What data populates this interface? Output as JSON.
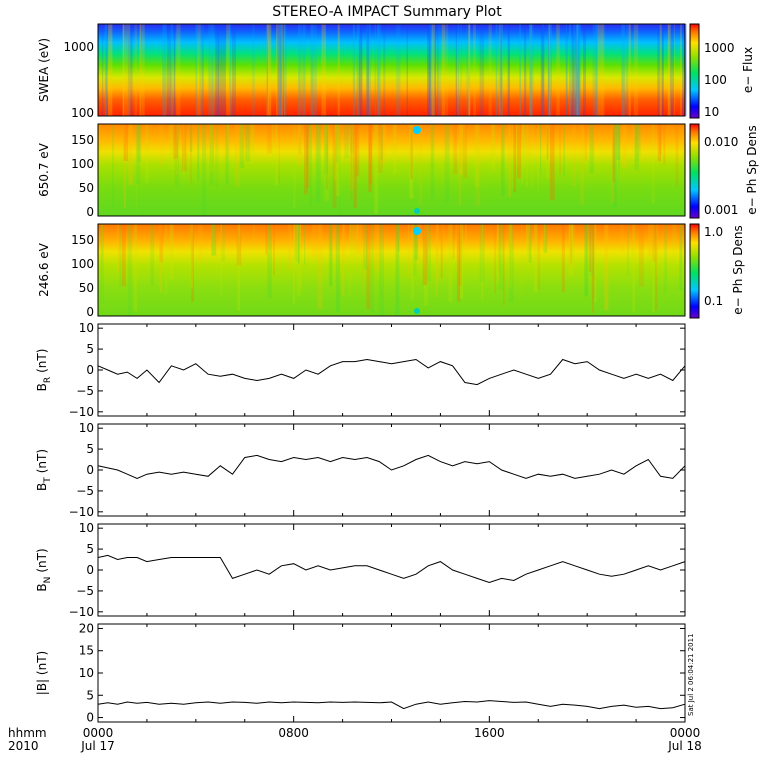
{
  "chart_data": {
    "title": "STEREO-A IMPACT Summary Plot",
    "x_labels": {
      "row1_caption": "hhmm",
      "row2_caption": "2010",
      "ticks": [
        "0000",
        "0800",
        "1600",
        "0000"
      ],
      "dates": [
        "Jul 17",
        "",
        "",
        "Jul 18"
      ]
    },
    "x_range_hours": [
      0,
      24
    ],
    "timestamp": "Sat Jul  2 06:04:21 2011",
    "panels": [
      {
        "id": "swea",
        "type": "heatmap",
        "ylabel": "SWEA (eV)",
        "yscale": "log",
        "ylim": [
          90,
          2000
        ],
        "yticks": [
          "1000",
          "100"
        ],
        "colorbar": {
          "label": "e− Flux",
          "scale": "log",
          "range": [
            7,
            10000
          ],
          "ticks": [
            "1000",
            "100",
            "10"
          ]
        }
      },
      {
        "id": "pad650",
        "type": "heatmap",
        "ylabel": "650.7 eV",
        "ylim": [
          -10,
          180
        ],
        "yticks": [
          "150",
          "100",
          "50",
          "0"
        ],
        "colorbar": {
          "label": "e− Ph Sp Dens",
          "scale": "log",
          "range": [
            0.001,
            0.015
          ],
          "ticks": [
            "0.010",
            "0.001"
          ]
        }
      },
      {
        "id": "pad246",
        "type": "heatmap",
        "ylabel": "246.6 eV",
        "ylim": [
          -10,
          180
        ],
        "yticks": [
          "150",
          "100",
          "50",
          "0"
        ],
        "colorbar": {
          "label": "e− Ph Sp Dens",
          "scale": "log",
          "range": [
            0.06,
            1.0
          ],
          "ticks": [
            "1.0",
            "0.1"
          ]
        }
      },
      {
        "id": "br",
        "type": "line",
        "ylabel_main": "B",
        "ylabel_sub": "R",
        "ylabel_unit": "(nT)",
        "ylim": [
          -11,
          11
        ],
        "yticks": [
          "10",
          "5",
          "0",
          "−5",
          "−10"
        ],
        "series": [
          {
            "x": [
              0,
              0.4,
              0.8,
              1.2,
              1.6,
              2.0,
              2.5,
              3.0,
              3.5,
              4.0,
              4.5,
              5.0,
              5.5,
              6.0,
              6.5,
              7.0,
              7.5,
              8.0,
              8.5,
              9.0,
              9.5,
              10.0,
              10.5,
              11.0,
              11.5,
              12.0,
              12.5,
              13.0,
              13.5,
              14.0,
              14.5,
              15.0,
              15.5,
              16.0,
              16.5,
              17.0,
              17.5,
              18.0,
              18.5,
              19.0,
              19.5,
              20.0,
              20.5,
              21.0,
              21.5,
              22.0,
              22.5,
              23.0,
              23.5,
              24.0
            ],
            "y": [
              1,
              0,
              -1,
              -0.5,
              -2,
              0,
              -3,
              1,
              0,
              1.5,
              -1,
              -1.5,
              -1,
              -2,
              -2.5,
              -2,
              -1,
              -2,
              0,
              -1,
              1,
              2,
              2,
              2.5,
              2,
              1.5,
              2,
              2.5,
              0.5,
              2,
              1,
              -3,
              -3.5,
              -2,
              -1,
              0,
              -1,
              -2,
              -1,
              2.5,
              1.5,
              2,
              0,
              -1,
              -2,
              -1,
              -2,
              -1,
              -2.5,
              1
            ]
          }
        ]
      },
      {
        "id": "bt",
        "type": "line",
        "ylabel_main": "B",
        "ylabel_sub": "T",
        "ylabel_unit": "(nT)",
        "ylim": [
          -11,
          11
        ],
        "yticks": [
          "10",
          "5",
          "0",
          "−5",
          "−10"
        ],
        "series": [
          {
            "x": [
              0,
              0.4,
              0.8,
              1.2,
              1.6,
              2.0,
              2.5,
              3.0,
              3.5,
              4.0,
              4.5,
              5.0,
              5.5,
              6.0,
              6.5,
              7.0,
              7.5,
              8.0,
              8.5,
              9.0,
              9.5,
              10.0,
              10.5,
              11.0,
              11.5,
              12.0,
              12.5,
              13.0,
              13.5,
              14.0,
              14.5,
              15.0,
              15.5,
              16.0,
              16.5,
              17.0,
              17.5,
              18.0,
              18.5,
              19.0,
              19.5,
              20.0,
              20.5,
              21.0,
              21.5,
              22.0,
              22.5,
              23.0,
              23.5,
              24.0
            ],
            "y": [
              1,
              0.5,
              0,
              -1,
              -2,
              -1,
              -0.5,
              -1,
              -0.5,
              -1,
              -1.5,
              1,
              -1,
              3,
              3.5,
              2.5,
              2,
              3,
              2.5,
              3,
              2,
              3,
              2.5,
              3,
              2,
              0,
              1,
              2.5,
              3.5,
              2,
              1,
              2,
              1.5,
              2,
              0,
              -1,
              -2,
              -1,
              -1.5,
              -1,
              -2,
              -1.5,
              -1,
              0,
              -1,
              1,
              2.5,
              -1.5,
              -2,
              1
            ]
          }
        ]
      },
      {
        "id": "bn",
        "type": "line",
        "ylabel_main": "B",
        "ylabel_sub": "N",
        "ylabel_unit": "(nT)",
        "ylim": [
          -11,
          11
        ],
        "yticks": [
          "10",
          "5",
          "0",
          "−5",
          "−10"
        ],
        "series": [
          {
            "x": [
              0,
              0.4,
              0.8,
              1.2,
              1.6,
              2.0,
              2.5,
              3.0,
              3.5,
              4.0,
              4.5,
              5.0,
              5.5,
              6.0,
              6.5,
              7.0,
              7.5,
              8.0,
              8.5,
              9.0,
              9.5,
              10.0,
              10.5,
              11.0,
              11.5,
              12.0,
              12.5,
              13.0,
              13.5,
              14.0,
              14.5,
              15.0,
              15.5,
              16.0,
              16.5,
              17.0,
              17.5,
              18.0,
              18.5,
              19.0,
              19.5,
              20.0,
              20.5,
              21.0,
              21.5,
              22.0,
              22.5,
              23.0,
              23.5,
              24.0
            ],
            "y": [
              3,
              3.5,
              2.5,
              3,
              3,
              2,
              2.5,
              3,
              3,
              3,
              3,
              3,
              -2,
              -1,
              0,
              -1,
              1,
              1.5,
              0,
              1,
              0,
              0.5,
              1,
              1,
              0,
              -1,
              -2,
              -1,
              1,
              2,
              0,
              -1,
              -2,
              -3,
              -2,
              -2.5,
              -1,
              0,
              1,
              2,
              1,
              0,
              -1,
              -1.5,
              -1,
              0,
              1,
              0,
              1,
              2
            ]
          }
        ]
      },
      {
        "id": "bmag",
        "type": "line",
        "ylabel_main": "|B| (nT)",
        "ylim": [
          -1,
          21
        ],
        "yticks": [
          "20",
          "15",
          "10",
          "5",
          "0"
        ],
        "series": [
          {
            "x": [
              0,
              0.4,
              0.8,
              1.2,
              1.6,
              2.0,
              2.5,
              3.0,
              3.5,
              4.0,
              4.5,
              5.0,
              5.5,
              6.0,
              6.5,
              7.0,
              7.5,
              8.0,
              8.5,
              9.0,
              9.5,
              10.0,
              10.5,
              11.0,
              11.5,
              12.0,
              12.5,
              13.0,
              13.5,
              14.0,
              14.5,
              15.0,
              15.5,
              16.0,
              16.5,
              17.0,
              17.5,
              18.0,
              18.5,
              19.0,
              19.5,
              20.0,
              20.5,
              21.0,
              21.5,
              22.0,
              22.5,
              23.0,
              23.5,
              24.0
            ],
            "y": [
              3,
              3.3,
              3,
              3.5,
              3.2,
              3.4,
              3,
              3.2,
              3,
              3.3,
              3.5,
              3.2,
              3.5,
              3.4,
              3.2,
              3.5,
              3.3,
              3.5,
              3.4,
              3.3,
              3.5,
              3.4,
              3.5,
              3.4,
              3.3,
              3.5,
              2,
              3,
              3.5,
              3,
              3.3,
              3.6,
              3.5,
              3.8,
              3.6,
              3.4,
              3.5,
              3,
              2.5,
              3,
              2.8,
              2.5,
              2,
              2.5,
              2.8,
              2.3,
              2.5,
              2,
              2.2,
              3
            ]
          }
        ]
      }
    ]
  }
}
